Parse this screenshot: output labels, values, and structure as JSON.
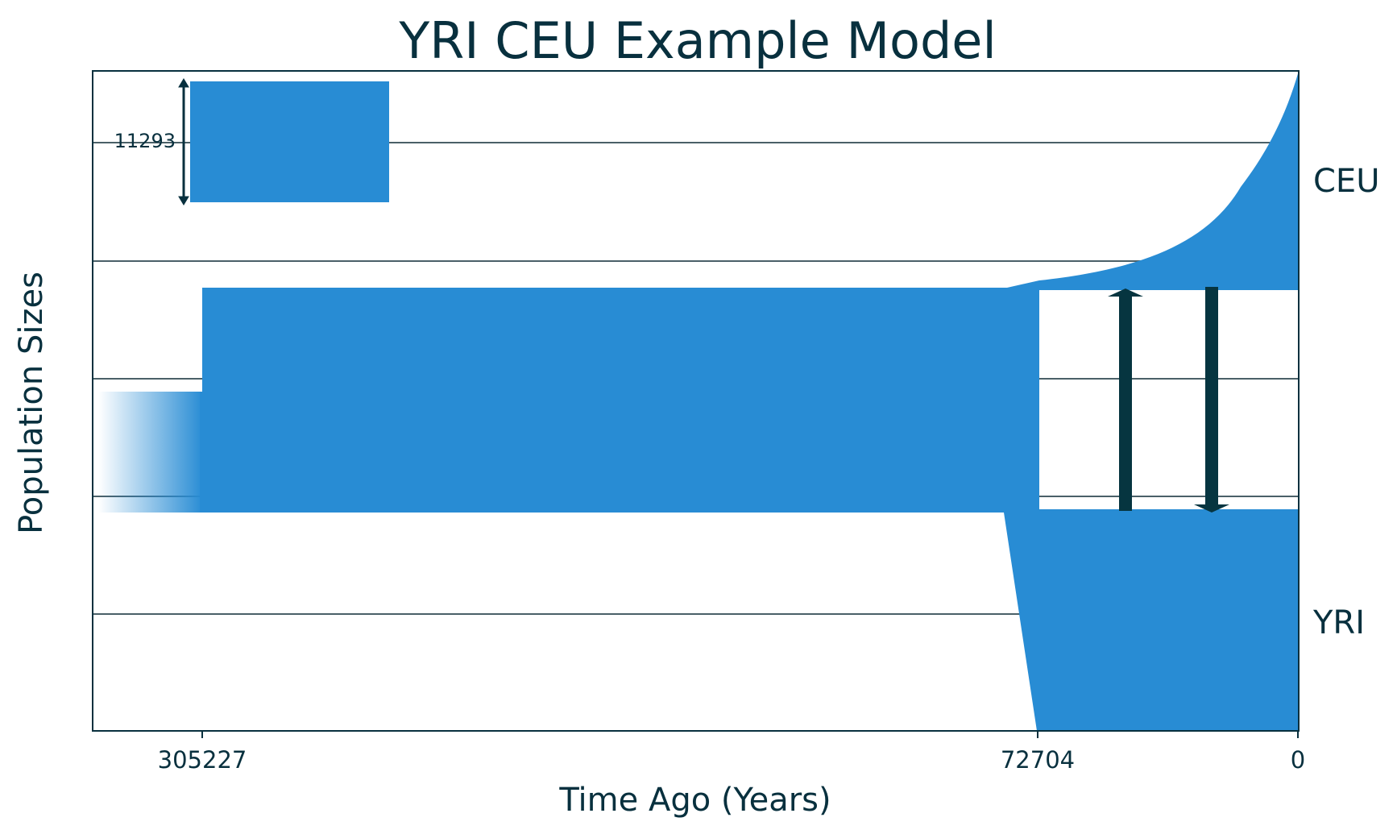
{
  "title": "YRI CEU Example Model",
  "xlabel": "Time Ago (Years)",
  "ylabel": "Population Sizes",
  "x_ticks": [
    "305227",
    "72704",
    "0"
  ],
  "populations": [
    {
      "name": "CEU"
    },
    {
      "name": "YRI"
    }
  ],
  "scale_bar": {
    "label": "11293"
  },
  "colors": {
    "population_fill": "#288cd4",
    "migration_arrow": "#063540",
    "axes": "#08303e",
    "gridline": "#4a6068"
  },
  "grid": true,
  "migration_arrows": [
    {
      "direction": "YRI to CEU"
    },
    {
      "direction": "CEU to YRI"
    }
  ]
}
